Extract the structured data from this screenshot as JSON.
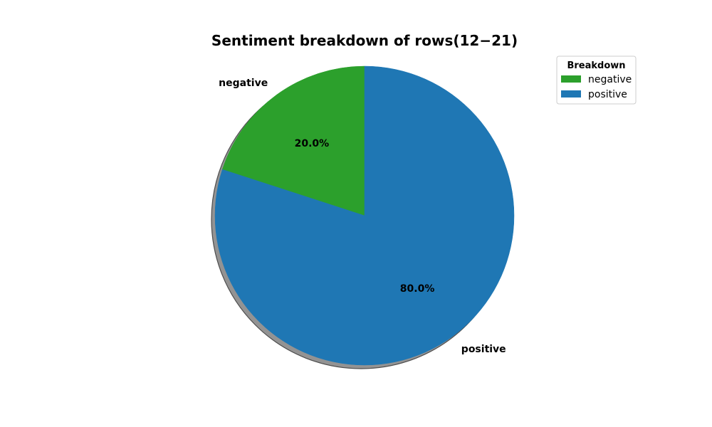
{
  "chart_data": {
    "type": "pie",
    "title": "Sentiment breakdown of rows(12−21)",
    "slices": [
      {
        "label": "negative",
        "value": 20.0,
        "pct_label": "20.0%",
        "color": "#2ca02c"
      },
      {
        "label": "positive",
        "value": 80.0,
        "pct_label": "80.0%",
        "color": "#1f77b4"
      }
    ],
    "start_angle_deg": 90,
    "direction": "counterclockwise",
    "shadow": true,
    "legend": {
      "title": "Breakdown",
      "placement": "upper-right",
      "entries": [
        "negative",
        "positive"
      ]
    }
  }
}
